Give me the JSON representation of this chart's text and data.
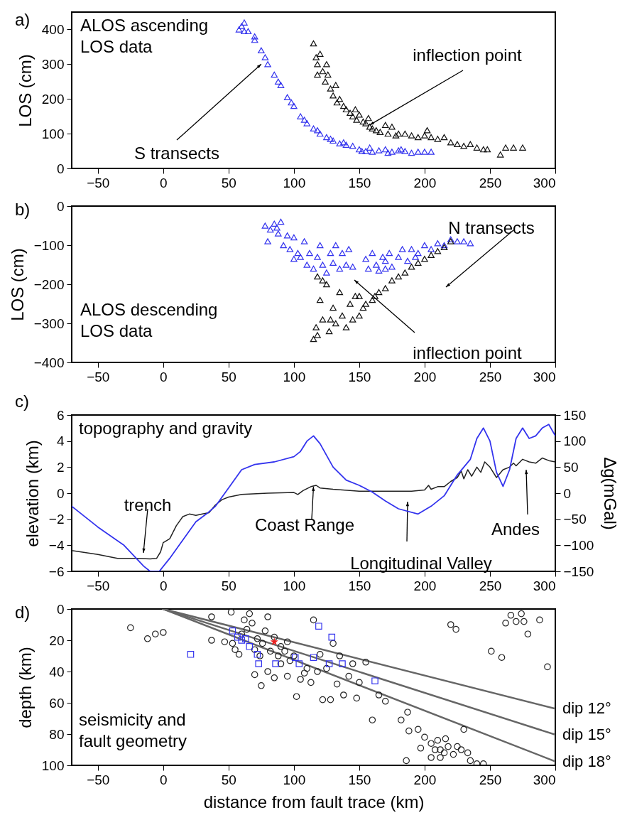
{
  "chart_data": [
    {
      "type": "scatter",
      "ylabel": "LOS (cm)",
      "xlim": [
        -70,
        300
      ],
      "xticks": [
        -50,
        0,
        50,
        100,
        150,
        200,
        250,
        300
      ],
      "ylim": [
        0,
        450
      ],
      "yticks": [
        0,
        100,
        200,
        300,
        400
      ],
      "marker": "triangle",
      "annotations": [
        "a)",
        "ALOS ascending\nLOS data",
        {
          "text": "inflection point",
          "x": 158,
          "y": 125
        },
        {
          "text": "S transects",
          "x": 75,
          "y": 300
        }
      ],
      "series": [
        {
          "color": "#3333ee",
          "x": [
            58,
            60,
            62,
            62,
            65,
            70,
            70,
            75,
            78,
            80,
            85,
            88,
            90,
            95,
            98,
            100,
            105,
            108,
            110,
            115,
            118,
            120,
            125,
            128,
            130,
            135,
            138,
            140,
            145,
            150,
            152,
            155,
            158,
            160,
            165,
            170,
            172,
            175,
            180,
            182,
            185,
            190,
            195,
            200,
            205
          ],
          "values": [
            400,
            410,
            420,
            395,
            395,
            380,
            370,
            340,
            320,
            300,
            270,
            250,
            240,
            205,
            190,
            180,
            150,
            140,
            130,
            115,
            110,
            100,
            90,
            85,
            80,
            72,
            75,
            68,
            65,
            55,
            50,
            50,
            60,
            48,
            52,
            55,
            45,
            48,
            52,
            55,
            50,
            45,
            48,
            48,
            48
          ]
        },
        {
          "color": "#111111",
          "x": [
            115,
            117,
            118,
            118,
            120,
            122,
            124,
            125,
            126,
            128,
            130,
            132,
            133,
            135,
            138,
            140,
            143,
            145,
            147,
            148,
            150,
            153,
            155,
            157,
            158,
            160,
            163,
            166,
            170,
            172,
            175,
            178,
            180,
            185,
            190,
            195,
            200,
            202,
            205,
            210,
            215,
            220,
            225,
            230,
            235,
            240,
            245,
            248,
            258,
            262,
            268,
            275
          ],
          "values": [
            360,
            320,
            300,
            270,
            330,
            280,
            250,
            300,
            270,
            230,
            210,
            240,
            190,
            200,
            180,
            170,
            160,
            150,
            170,
            140,
            155,
            135,
            130,
            145,
            120,
            115,
            110,
            105,
            125,
            100,
            120,
            95,
            100,
            100,
            95,
            90,
            95,
            110,
            90,
            85,
            90,
            75,
            70,
            65,
            70,
            60,
            55,
            55,
            40,
            60,
            60,
            60
          ]
        }
      ]
    },
    {
      "type": "scatter",
      "ylabel": "LOS (cm)",
      "xlim": [
        -70,
        300
      ],
      "xticks": [
        -50,
        0,
        50,
        100,
        150,
        200,
        250,
        300
      ],
      "ylim": [
        -400,
        0
      ],
      "yticks": [
        -400,
        -300,
        -200,
        -100,
        0
      ],
      "marker": "triangle",
      "annotations": [
        "b)",
        "ALOS descending\nLOS data",
        "N transects",
        "inflection point"
      ],
      "series": [
        {
          "color": "#3333ee",
          "x": [
            78,
            80,
            82,
            85,
            87,
            88,
            90,
            92,
            95,
            97,
            100,
            100,
            103,
            105,
            108,
            110,
            112,
            115,
            118,
            120,
            122,
            125,
            128,
            130,
            132,
            135,
            137,
            140,
            142,
            145,
            155,
            157,
            160,
            163,
            165,
            168,
            170,
            170,
            173,
            175,
            180,
            183,
            187,
            190,
            193,
            195,
            200,
            205,
            210,
            215,
            220,
            225,
            230,
            235
          ],
          "values": [
            -50,
            -90,
            -60,
            -45,
            -55,
            -70,
            -40,
            -100,
            -75,
            -110,
            -80,
            -135,
            -120,
            -130,
            -90,
            -150,
            -120,
            -160,
            -130,
            -100,
            -150,
            -170,
            -120,
            -145,
            -100,
            -160,
            -120,
            -150,
            -110,
            -155,
            -135,
            -160,
            -120,
            -150,
            -165,
            -130,
            -140,
            -160,
            -120,
            -155,
            -130,
            -110,
            -140,
            -110,
            -130,
            -120,
            -100,
            -110,
            -95,
            -100,
            -85,
            -90,
            -90,
            -95
          ]
        },
        {
          "color": "#111111",
          "x": [
            115,
            117,
            118,
            118,
            120,
            122,
            122,
            125,
            127,
            128,
            130,
            132,
            135,
            137,
            140,
            143,
            145,
            147,
            150,
            150,
            153,
            155,
            160,
            162,
            165,
            170,
            175,
            180,
            185,
            190,
            195,
            200,
            205,
            210,
            215,
            220
          ],
          "values": [
            -340,
            -310,
            -180,
            -330,
            -240,
            -190,
            -290,
            -200,
            -320,
            -290,
            -260,
            -300,
            -220,
            -280,
            -310,
            -250,
            -290,
            -230,
            -280,
            -230,
            -260,
            -250,
            -240,
            -230,
            -220,
            -210,
            -190,
            -180,
            -170,
            -155,
            -145,
            -135,
            -125,
            -115,
            -105,
            -90
          ]
        }
      ]
    },
    {
      "type": "line",
      "ylabel": "elevation (km)",
      "y2label": "Δg(mGal)",
      "xlim": [
        -70,
        300
      ],
      "xticks": [
        -50,
        0,
        50,
        100,
        150,
        200,
        250,
        300
      ],
      "ylim": [
        -6,
        6
      ],
      "yticks": [
        -6,
        -4,
        -2,
        0,
        2,
        4,
        6
      ],
      "y2lim": [
        -150,
        150
      ],
      "y2ticks": [
        -150,
        -100,
        -50,
        0,
        50,
        100,
        150
      ],
      "annotations": [
        "c)",
        "topography and gravity",
        "trench",
        {
          "text": "Coast Range",
          "x": 115,
          "y": 0.5
        },
        "Longitudinal Valley",
        "Andes"
      ],
      "series": [
        {
          "color": "#3333ee",
          "axis": "y2",
          "x": [
            -70,
            -50,
            -30,
            -15,
            -10,
            -3,
            5,
            15,
            25,
            33,
            40,
            50,
            60,
            70,
            85,
            100,
            105,
            110,
            115,
            120,
            130,
            140,
            150,
            160,
            170,
            180,
            195,
            205,
            215,
            225,
            235,
            240,
            245,
            250,
            255,
            260,
            265,
            270,
            275,
            280,
            285,
            290,
            295,
            300
          ],
          "values": [
            -25,
            -65,
            -100,
            -140,
            -150,
            -150,
            -125,
            -90,
            -55,
            -40,
            -25,
            10,
            45,
            55,
            60,
            70,
            80,
            100,
            110,
            95,
            50,
            25,
            15,
            2,
            -15,
            -30,
            -40,
            -25,
            -5,
            35,
            65,
            105,
            125,
            100,
            40,
            13,
            45,
            105,
            125,
            105,
            110,
            125,
            132,
            110
          ]
        },
        {
          "color": "#222222",
          "x": [
            -70,
            -50,
            -35,
            -20,
            -10,
            -5,
            -2,
            0,
            5,
            10,
            15,
            20,
            25,
            30,
            35,
            40,
            45,
            50,
            60,
            80,
            100,
            103,
            107,
            113,
            117,
            120,
            130,
            150,
            170,
            190,
            200,
            203,
            205,
            210,
            215,
            220,
            225,
            228,
            230,
            233,
            236,
            240,
            243,
            246,
            250,
            255,
            260,
            265,
            268,
            270,
            275,
            280,
            285,
            290,
            295,
            300
          ],
          "values": [
            -4.4,
            -4.7,
            -5.0,
            -5.0,
            -5.05,
            -5.0,
            -4.5,
            -3.8,
            -3.5,
            -2.5,
            -1.8,
            -1.6,
            -1.7,
            -1.6,
            -1.5,
            -0.9,
            -0.5,
            -0.3,
            -0.1,
            0.0,
            0.05,
            -0.1,
            0.2,
            0.5,
            0.6,
            0.4,
            0.3,
            0.15,
            0.15,
            0.15,
            0.25,
            0.6,
            0.3,
            0.5,
            0.5,
            0.9,
            1.2,
            1.7,
            1.1,
            1.8,
            1.3,
            2.0,
            1.6,
            2.4,
            2.0,
            1.2,
            1.8,
            2.0,
            2.3,
            2.1,
            2.6,
            2.4,
            2.3,
            2.7,
            2.5,
            2.4
          ]
        }
      ]
    },
    {
      "type": "scatter",
      "xlabel": "distance from fault trace (km)",
      "ylabel": "depth (km)",
      "xlim": [
        -70,
        300
      ],
      "xticks": [
        -50,
        0,
        50,
        100,
        150,
        200,
        250,
        300
      ],
      "ylim": [
        100,
        0
      ],
      "yticks": [
        100,
        80,
        60,
        40,
        20,
        0
      ],
      "annotations": [
        "d)",
        "seismicity and\nfault geometry"
      ],
      "series": [
        {
          "type": "line",
          "name": "dip 12°",
          "color": "#666666",
          "x": [
            0,
            300
          ],
          "values": [
            0,
            63.8
          ]
        },
        {
          "type": "line",
          "name": "dip 15°",
          "color": "#666666",
          "x": [
            0,
            300
          ],
          "values": [
            0,
            80.4
          ]
        },
        {
          "type": "line",
          "name": "dip 18°",
          "color": "#666666",
          "x": [
            0,
            300
          ],
          "values": [
            0,
            97.5
          ]
        },
        {
          "color": "#222222",
          "marker": "circle",
          "x": [
            -25,
            -12,
            -6,
            0,
            37,
            37,
            47,
            52,
            53,
            55,
            58,
            60,
            62,
            64,
            66,
            68,
            70,
            72,
            74,
            76,
            78,
            80,
            82,
            85,
            88,
            90,
            93,
            95,
            97,
            70,
            75,
            80,
            85,
            90,
            95,
            100,
            102,
            105,
            108,
            110,
            113,
            115,
            118,
            120,
            122,
            125,
            128,
            130,
            133,
            135,
            138,
            142,
            145,
            148,
            150,
            155,
            160,
            165,
            170,
            182,
            187,
            188,
            195,
            197,
            200,
            205,
            208,
            210,
            212,
            215,
            218,
            220,
            222,
            224,
            228,
            230,
            233,
            235,
            240,
            245,
            251,
            259,
            262,
            266,
            270,
            274,
            276,
            279,
            288,
            294,
            186,
            205,
            212,
            216,
            225
          ],
          "values": [
            12,
            19,
            16,
            15,
            5,
            20,
            21,
            2,
            22,
            26,
            29,
            16,
            7,
            13,
            3,
            9,
            26,
            19,
            30,
            22,
            14,
            5,
            27,
            18,
            30,
            24,
            27,
            21,
            33,
            42,
            49,
            40,
            44,
            35,
            43,
            30,
            56,
            45,
            41,
            38,
            47,
            7,
            40,
            29,
            58,
            38,
            58,
            22,
            48,
            30,
            55,
            43,
            35,
            57,
            47,
            34,
            71,
            55,
            59,
            71,
            66,
            78,
            77,
            89,
            82,
            86,
            90,
            84,
            95,
            92,
            88,
            10,
            93,
            13,
            90,
            77,
            92,
            97,
            99,
            99,
            27,
            31,
            9,
            4,
            8,
            3,
            8,
            16,
            7,
            37,
            97,
            95,
            90,
            83,
            88
          ]
        },
        {
          "color": "#3333ee",
          "marker": "square",
          "x": [
            21,
            53,
            57,
            60,
            63,
            66,
            72,
            73,
            86,
            101,
            104,
            115,
            119,
            127,
            129,
            137,
            162
          ],
          "values": [
            29,
            14,
            18,
            20,
            19,
            24,
            29,
            35,
            35,
            31,
            35,
            31,
            11,
            35,
            18,
            35,
            46
          ]
        },
        {
          "color": "#ee2222",
          "marker": "star",
          "x": [
            85
          ],
          "values": [
            21
          ]
        }
      ]
    }
  ]
}
